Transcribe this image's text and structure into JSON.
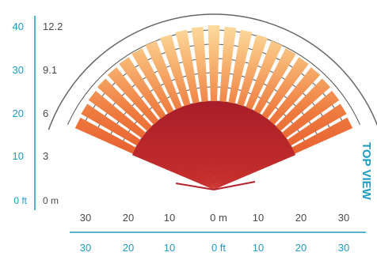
{
  "vertical_scale_ft": {
    "labels": [
      "40",
      "30",
      "20",
      "10",
      "0 ft"
    ]
  },
  "vertical_scale_m": {
    "labels": [
      "12.2",
      "9.1",
      "6",
      "3",
      "0 m"
    ]
  },
  "horizontal_scale_m": {
    "labels": [
      "30",
      "20",
      "10",
      "0 m",
      "10",
      "20",
      "30"
    ]
  },
  "horizontal_scale_ft": {
    "labels": [
      "30",
      "20",
      "10",
      "0 ft",
      "10",
      "20",
      "30"
    ]
  },
  "view_label": "TOP VIEW",
  "colors": {
    "accent": "#1f9bc4",
    "scale_text": "#4a4a4a",
    "ring": "#555555",
    "near_beam": "#b5222b",
    "mid_beam_inner": "#e8542a",
    "far_beam_tip": "#fde2a0"
  }
}
